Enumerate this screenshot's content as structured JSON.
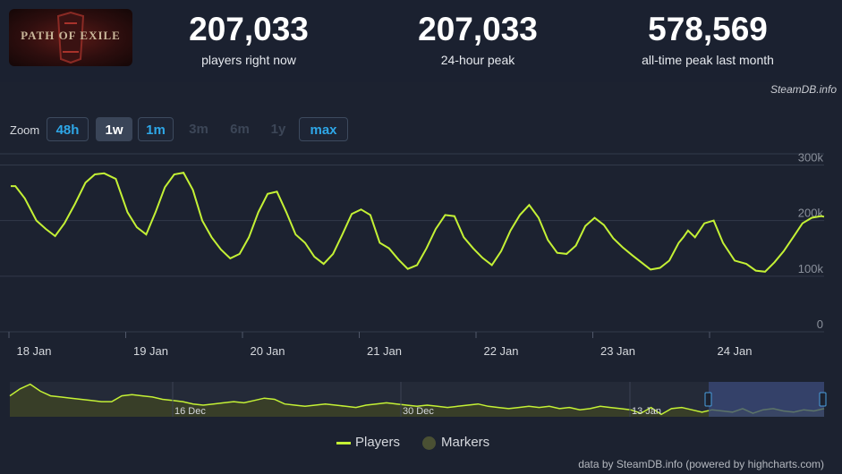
{
  "game": {
    "logo_text": "PATH OF EXILE"
  },
  "stats": [
    {
      "value": "207,033",
      "label": "players right now"
    },
    {
      "value": "207,033",
      "label": "24-hour peak"
    },
    {
      "value": "578,569",
      "label": "all-time peak last month"
    }
  ],
  "credit_top": "SteamDB.info",
  "zoom": {
    "label": "Zoom",
    "buttons": [
      {
        "label": "48h",
        "state": "enabled"
      },
      {
        "label": "1w",
        "state": "active"
      },
      {
        "label": "1m",
        "state": "enabled"
      },
      {
        "label": "3m",
        "state": "disabled"
      },
      {
        "label": "6m",
        "state": "disabled"
      },
      {
        "label": "1y",
        "state": "disabled"
      },
      {
        "label": "max",
        "state": "enabled"
      }
    ]
  },
  "legend": {
    "players": "Players",
    "markers": "Markers"
  },
  "credit_bottom": "data by SteamDB.info (powered by highcharts.com)",
  "colors": {
    "line": "#c4f135",
    "grid": "#323a4a",
    "navigator_bg": "#3c4226",
    "nav_selection": "#3a4a7a",
    "nav_handle": "#4aa0e0"
  },
  "chart_data": {
    "type": "line",
    "series": [
      {
        "name": "Players",
        "x": [
          0,
          0.04,
          0.12,
          0.22,
          0.3,
          0.38,
          0.46,
          0.55,
          0.64,
          0.72,
          0.8,
          0.9,
          1.0,
          1.08,
          1.16,
          1.24,
          1.32,
          1.4,
          1.48,
          1.56,
          1.64,
          1.72,
          1.8,
          1.88,
          1.96,
          2.04,
          2.12,
          2.2,
          2.28,
          2.36,
          2.44,
          2.52,
          2.6,
          2.68,
          2.76,
          2.84,
          2.92,
          3.0,
          3.08,
          3.16,
          3.24,
          3.32,
          3.4,
          3.48,
          3.56,
          3.64,
          3.72,
          3.8,
          3.88,
          3.96,
          4.04,
          4.12,
          4.2,
          4.28,
          4.36,
          4.44,
          4.52,
          4.6,
          4.68,
          4.76,
          4.84,
          4.92,
          5.0,
          5.08,
          5.16,
          5.24,
          5.32,
          5.4,
          5.48,
          5.56,
          5.64,
          5.72,
          5.76,
          5.8,
          5.86,
          5.94,
          6.02,
          6.1,
          6.2,
          6.3,
          6.38,
          6.46,
          6.54,
          6.62,
          6.7,
          6.78,
          6.86,
          6.94,
          6.98
        ],
        "values": [
          262,
          262,
          240,
          200,
          185,
          172,
          195,
          230,
          268,
          283,
          285,
          275,
          215,
          188,
          175,
          215,
          260,
          283,
          286,
          255,
          200,
          170,
          148,
          132,
          140,
          170,
          215,
          248,
          252,
          215,
          175,
          160,
          135,
          122,
          140,
          175,
          212,
          220,
          210,
          160,
          150,
          130,
          113,
          120,
          150,
          185,
          210,
          208,
          170,
          150,
          133,
          120,
          145,
          182,
          210,
          228,
          205,
          165,
          142,
          140,
          155,
          190,
          205,
          192,
          168,
          152,
          138,
          125,
          112,
          115,
          128,
          160,
          170,
          182,
          170,
          195,
          200,
          160,
          128,
          122,
          110,
          108,
          125,
          145,
          170,
          195,
          205,
          208,
          207
        ]
      }
    ],
    "x_tick_labels": [
      "18 Jan",
      "19 Jan",
      "20 Jan",
      "21 Jan",
      "22 Jan",
      "23 Jan",
      "24 Jan"
    ],
    "y_tick_labels": [
      "0",
      "100k",
      "200k",
      "300k"
    ],
    "ylim": [
      0,
      320
    ],
    "navigator": {
      "labels": [
        "16 Dec",
        "30 Dec",
        "13 Jan"
      ],
      "values": [
        18,
        24,
        28,
        22,
        18,
        17,
        16,
        15,
        14,
        13,
        13,
        18,
        19,
        18,
        17,
        15,
        14,
        13,
        11,
        10,
        11,
        12,
        13,
        12,
        14,
        16,
        15,
        11,
        10,
        9,
        10,
        11,
        10,
        9,
        8,
        10,
        11,
        12,
        11,
        10,
        9,
        10,
        9,
        8,
        9,
        10,
        11,
        9,
        8,
        7,
        8,
        9,
        8,
        9,
        7,
        8,
        6,
        7,
        9,
        8,
        7,
        6,
        3,
        8,
        2,
        7,
        8,
        6,
        4,
        6,
        5,
        4,
        7,
        3,
        6,
        7,
        5,
        4,
        6,
        5,
        7
      ]
    },
    "grid": true,
    "legend_position": "bottom-center"
  }
}
